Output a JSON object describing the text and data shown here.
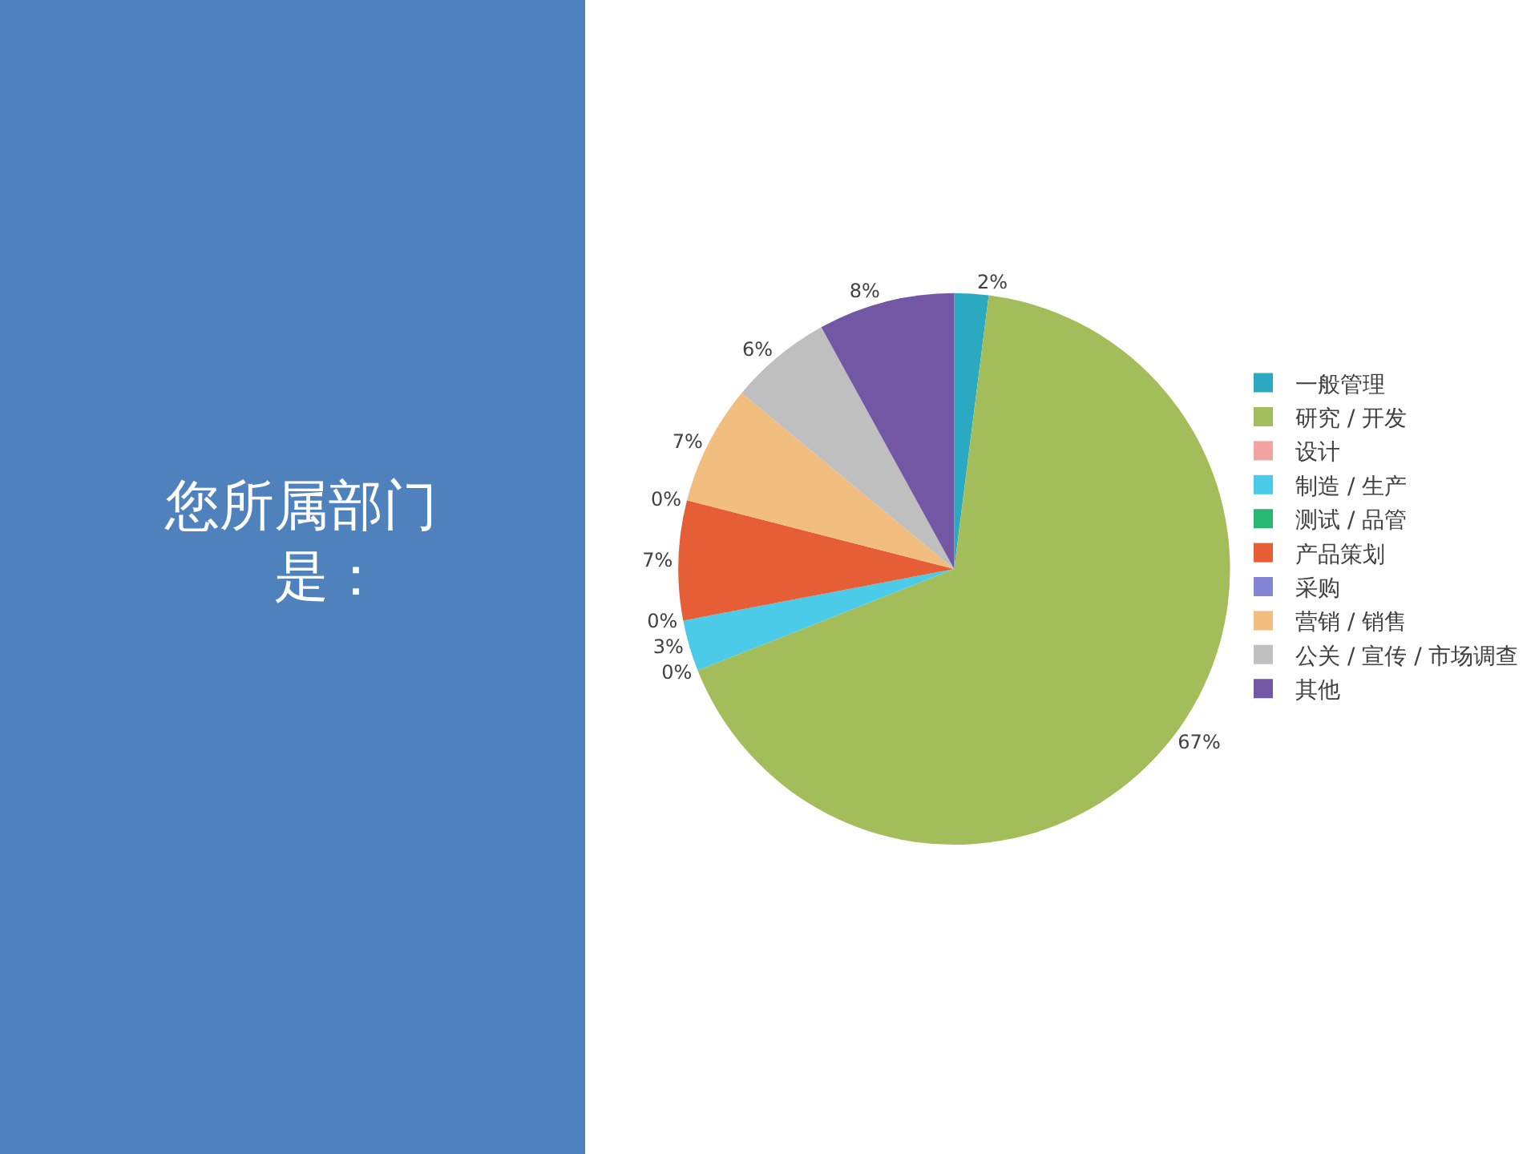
{
  "chart_data": {
    "type": "pie",
    "title": "您所属部门是：",
    "categories": [
      "一般管理",
      "研究 / 开发",
      "设计",
      "制造 / 生产",
      "测试 / 品管",
      "产品策划",
      "采购",
      "营销 / 销售",
      "公关 / 宣传 / 市场调查",
      "其他"
    ],
    "values": [
      2,
      67,
      0,
      3,
      0,
      7,
      0,
      7,
      6,
      8
    ],
    "value_labels": [
      "2%",
      "67%",
      "0%",
      "3%",
      "0%",
      "7%",
      "0%",
      "7%",
      "6%",
      "8%"
    ],
    "colors": [
      "#2aa9c0",
      "#a2bd5a",
      "#f4a3a3",
      "#4bcbe8",
      "#2bb673",
      "#e55e35",
      "#8585d6",
      "#f1be7f",
      "#bfbfbf",
      "#7357a4"
    ],
    "legend": "right"
  }
}
